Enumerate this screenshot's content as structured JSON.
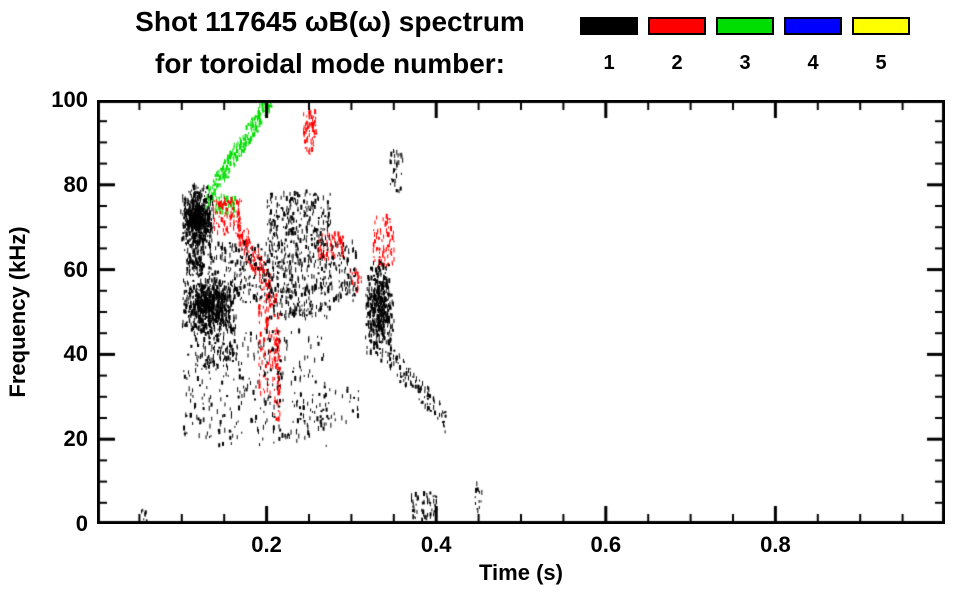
{
  "chart_data": {
    "type": "scatter",
    "title": "Shot 117645 ωB(ω) spectrum",
    "subtitle": "for toroidal mode number:",
    "xlabel": "Time (s)",
    "ylabel": "Frequency (kHz)",
    "xlim": [
      0,
      1
    ],
    "ylim": [
      0,
      100
    ],
    "grid": false,
    "legend_position": "top-right",
    "x_ticks": {
      "major": [
        0.2,
        0.4,
        0.6,
        0.8
      ],
      "labels": [
        "0.2",
        "0.4",
        "0.6",
        "0.8"
      ],
      "minor_step": 0.05
    },
    "y_ticks": {
      "major": [
        0,
        20,
        40,
        60,
        80,
        100
      ],
      "labels": [
        "0",
        "20",
        "40",
        "60",
        "80",
        "100"
      ],
      "minor_step": 5
    },
    "legend": [
      {
        "label": "1",
        "color": "#000000"
      },
      {
        "label": "2",
        "color": "#ff0000"
      },
      {
        "label": "3",
        "color": "#00dd00"
      },
      {
        "label": "4",
        "color": "#0000ff"
      },
      {
        "label": "5",
        "color": "#ffff00"
      }
    ],
    "clusters": [
      {
        "series": 1,
        "t": [
          0.098,
          0.138
        ],
        "f": [
          63,
          80
        ],
        "n": 600,
        "clump": true
      },
      {
        "series": 1,
        "t": [
          0.098,
          0.165
        ],
        "f": [
          44,
          58
        ],
        "n": 700,
        "clump": true
      },
      {
        "series": 1,
        "t": [
          0.105,
          0.125
        ],
        "f": [
          58,
          64
        ],
        "n": 100
      },
      {
        "series": 1,
        "t": [
          0.115,
          0.165
        ],
        "f": [
          36,
          46
        ],
        "n": 120
      },
      {
        "series": 1,
        "t": [
          0.1,
          0.135
        ],
        "f": [
          20,
          42
        ],
        "n": 60
      },
      {
        "series": 1,
        "t": [
          0.13,
          0.2
        ],
        "f": [
          52,
          66
        ],
        "n": 180
      },
      {
        "series": 1,
        "t": [
          0.14,
          0.27
        ],
        "f": [
          18,
          45
        ],
        "n": 260
      },
      {
        "series": 1,
        "t": [
          0.2,
          0.275
        ],
        "f": [
          48,
          78
        ],
        "n": 550
      },
      {
        "series": 1,
        "t": [
          0.275,
          0.305
        ],
        "f": [
          52,
          66
        ],
        "n": 90
      },
      {
        "series": 1,
        "t": [
          0.27,
          0.31
        ],
        "f": [
          22,
          32
        ],
        "n": 25
      },
      {
        "series": 1,
        "t": [
          0.315,
          0.35
        ],
        "f": [
          38,
          62
        ],
        "n": 450,
        "clump": true
      },
      {
        "series": 1,
        "t": [
          0.34,
          0.41
        ],
        "f": [
          40,
          24
        ],
        "n": 110,
        "mode": "trend",
        "jitter": 3
      },
      {
        "series": 1,
        "t": [
          0.37,
          0.4
        ],
        "f": [
          0,
          7
        ],
        "n": 60
      },
      {
        "series": 1,
        "t": [
          0.445,
          0.455
        ],
        "f": [
          2,
          9
        ],
        "n": 14
      },
      {
        "series": 1,
        "t": [
          0.05,
          0.06
        ],
        "f": [
          0,
          3
        ],
        "n": 8
      },
      {
        "series": 1,
        "t": [
          0.345,
          0.36
        ],
        "f": [
          78,
          88
        ],
        "n": 35
      },
      {
        "series": 2,
        "t": [
          0.135,
          0.17
        ],
        "f": [
          68,
          76
        ],
        "n": 90
      },
      {
        "series": 2,
        "t": [
          0.165,
          0.205
        ],
        "f": [
          70,
          54
        ],
        "n": 150,
        "mode": "trend",
        "jitter": 4
      },
      {
        "series": 2,
        "t": [
          0.19,
          0.215
        ],
        "f": [
          30,
          54
        ],
        "n": 110
      },
      {
        "series": 2,
        "t": [
          0.208,
          0.216
        ],
        "f": [
          24,
          46
        ],
        "n": 50
      },
      {
        "series": 2,
        "t": [
          0.243,
          0.258
        ],
        "f": [
          87,
          97
        ],
        "n": 70
      },
      {
        "series": 2,
        "t": [
          0.26,
          0.29
        ],
        "f": [
          62,
          68
        ],
        "n": 70
      },
      {
        "series": 2,
        "t": [
          0.325,
          0.35
        ],
        "f": [
          60,
          72
        ],
        "n": 80
      },
      {
        "series": 2,
        "t": [
          0.298,
          0.312
        ],
        "f": [
          54,
          60
        ],
        "n": 18
      },
      {
        "series": 3,
        "t": [
          0.128,
          0.205
        ],
        "f": [
          76,
          100
        ],
        "n": 260,
        "mode": "trend",
        "jitter": 2.5
      },
      {
        "series": 3,
        "t": [
          0.138,
          0.162
        ],
        "f": [
          72,
          77
        ],
        "n": 45
      }
    ]
  }
}
